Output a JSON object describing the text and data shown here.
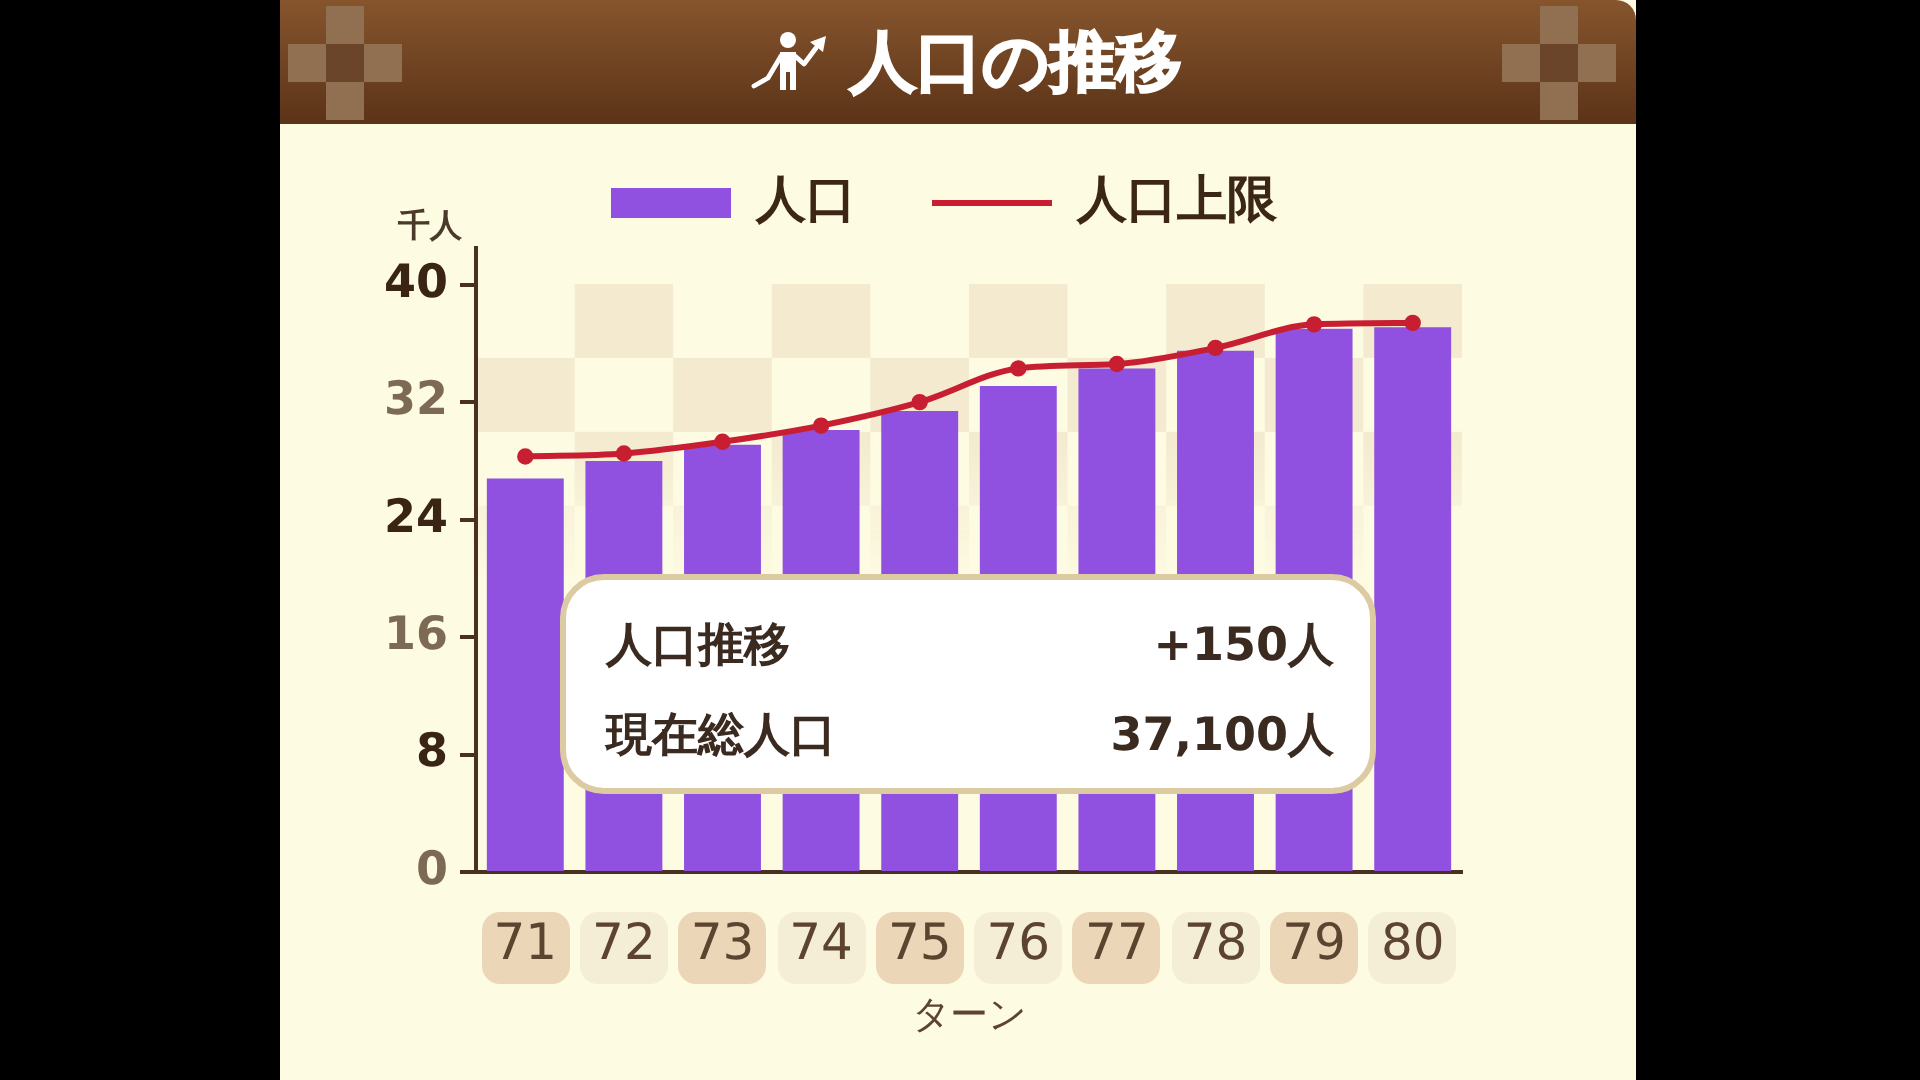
{
  "chart_data": {
    "type": "bar",
    "title": "人口の推移",
    "xlabel": "ターン",
    "ylabel": "千人",
    "categories": [
      "71",
      "72",
      "73",
      "74",
      "75",
      "76",
      "77",
      "78",
      "79",
      "80"
    ],
    "series": [
      {
        "name": "人口",
        "color": "#9050e0",
        "values": [
          26.8,
          28.0,
          29.1,
          30.1,
          31.4,
          33.1,
          34.3,
          35.5,
          37.0,
          37.1
        ]
      },
      {
        "name": "人口上限",
        "type": "line",
        "color": "#c81e32",
        "marker": "circle",
        "values": [
          28.3,
          28.5,
          29.3,
          30.4,
          32.0,
          34.3,
          34.6,
          35.7,
          37.3,
          37.4
        ]
      }
    ],
    "ylim": [
      0,
      42.5
    ],
    "yticks": [
      0,
      8,
      16,
      24,
      32,
      40
    ],
    "legend": "top",
    "annotations": [
      "人口推移",
      "+150人",
      "現在総人口",
      "37,100人"
    ]
  }
}
